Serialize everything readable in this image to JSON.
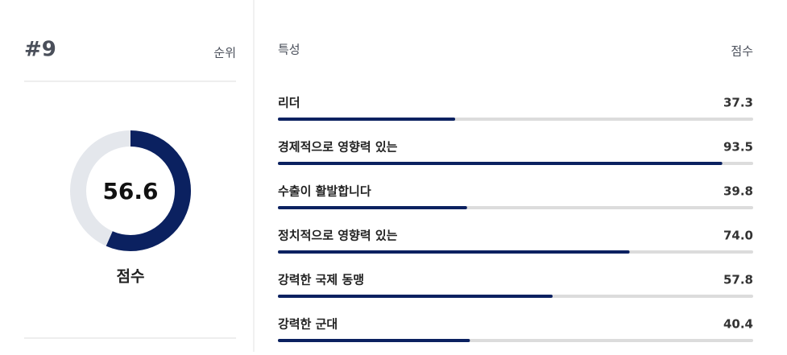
{
  "rank": "#9",
  "rank_label": "순위",
  "score": 56.6,
  "score_label": "점수",
  "table": {
    "header": [
      "특성",
      "점수"
    ],
    "xlim": [
      0,
      100
    ],
    "rows": [
      {
        "name": "리더",
        "value": 37.3
      },
      {
        "name": "경제적으로 영향력 있는",
        "value": 93.5
      },
      {
        "name": "수출이 활발합니다",
        "value": 39.8
      },
      {
        "name": "정치적으로 영향력 있는",
        "value": 74,
        "value_label": "74.0"
      },
      {
        "name": "강력한 국제 동맹",
        "value": 57.8
      },
      {
        "name": "강력한 군대",
        "value": 40.4
      }
    ]
  }
}
